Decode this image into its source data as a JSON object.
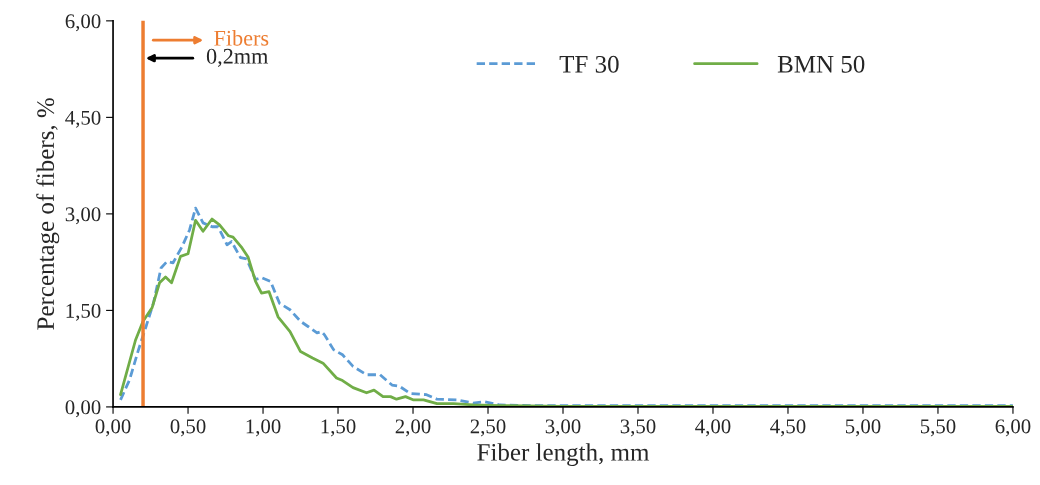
{
  "chart_data": {
    "type": "line",
    "xlabel": "Fiber length, mm",
    "ylabel": "Percentage of fibers, %",
    "xlim": [
      0,
      6
    ],
    "ylim": [
      0,
      6
    ],
    "xticks": [
      {
        "value": 0,
        "label": "0,00"
      },
      {
        "value": 0.5,
        "label": "0,50"
      },
      {
        "value": 1,
        "label": "1,00"
      },
      {
        "value": 1.5,
        "label": "1,50"
      },
      {
        "value": 2,
        "label": "2,00"
      },
      {
        "value": 2.5,
        "label": "2,50"
      },
      {
        "value": 3,
        "label": "3,00"
      },
      {
        "value": 3.5,
        "label": "3,50"
      },
      {
        "value": 4,
        "label": "4,00"
      },
      {
        "value": 4.5,
        "label": "4,50"
      },
      {
        "value": 5,
        "label": "5,00"
      },
      {
        "value": 5.5,
        "label": "5,50"
      },
      {
        "value": 6,
        "label": "6,00"
      }
    ],
    "yticks": [
      {
        "value": 0,
        "label": "0,00"
      },
      {
        "value": 1.5,
        "label": "1,50"
      },
      {
        "value": 3,
        "label": "3,00"
      },
      {
        "value": 4.5,
        "label": "4,50"
      },
      {
        "value": 6,
        "label": "6,00"
      }
    ],
    "grid": false,
    "legend": "top",
    "marker": "none",
    "series": [
      {
        "name": "TF 30",
        "color": "#5b9bd5",
        "line_style": "dashed",
        "x": [
          0.05,
          0.11,
          0.17,
          0.22,
          0.27,
          0.32,
          0.36,
          0.4,
          0.46,
          0.51,
          0.55,
          0.6,
          0.66,
          0.7,
          0.76,
          0.79,
          0.85,
          0.89,
          0.95,
          0.99,
          1.05,
          1.11,
          1.18,
          1.25,
          1.3,
          1.36,
          1.39,
          1.41,
          1.47,
          1.53,
          1.6,
          1.69,
          1.78,
          1.86,
          1.91,
          1.98,
          2.09,
          2.16,
          2.29,
          2.4,
          2.48,
          2.58,
          2.8,
          3.2,
          4.0,
          5.0,
          6.0
        ],
        "values": [
          0.11,
          0.42,
          0.89,
          1.25,
          1.62,
          2.16,
          2.26,
          2.24,
          2.49,
          2.75,
          3.09,
          2.86,
          2.8,
          2.8,
          2.52,
          2.57,
          2.32,
          2.3,
          1.98,
          2.01,
          1.95,
          1.61,
          1.51,
          1.33,
          1.25,
          1.15,
          1.17,
          1.12,
          0.89,
          0.81,
          0.63,
          0.5,
          0.5,
          0.34,
          0.32,
          0.21,
          0.19,
          0.12,
          0.11,
          0.06,
          0.08,
          0.03,
          0.02,
          0.02,
          0.02,
          0.02,
          0.02
        ]
      },
      {
        "name": "BMN 50",
        "color": "#70ad47",
        "line_style": "solid",
        "x": [
          0.05,
          0.15,
          0.2,
          0.26,
          0.31,
          0.35,
          0.39,
          0.45,
          0.5,
          0.55,
          0.6,
          0.66,
          0.71,
          0.77,
          0.8,
          0.86,
          0.9,
          0.95,
          0.99,
          1.04,
          1.1,
          1.18,
          1.25,
          1.33,
          1.4,
          1.49,
          1.53,
          1.6,
          1.69,
          1.74,
          1.8,
          1.85,
          1.89,
          1.95,
          2.0,
          2.07,
          2.16,
          2.27,
          2.4,
          2.58,
          3.0,
          4.0,
          5.0,
          6.0
        ],
        "values": [
          0.19,
          1.04,
          1.33,
          1.54,
          1.93,
          2.02,
          1.93,
          2.34,
          2.38,
          2.9,
          2.73,
          2.92,
          2.83,
          2.66,
          2.64,
          2.47,
          2.33,
          1.95,
          1.77,
          1.79,
          1.4,
          1.17,
          0.86,
          0.76,
          0.68,
          0.45,
          0.41,
          0.3,
          0.22,
          0.26,
          0.16,
          0.16,
          0.12,
          0.16,
          0.11,
          0.11,
          0.05,
          0.05,
          0.03,
          0.02,
          0.01,
          0.01,
          0.01,
          0.01
        ]
      }
    ],
    "ref_lines": [
      {
        "axis": "x",
        "value": 0.2,
        "label": "Fibers",
        "color": "#ed7d31",
        "line_style": "solid"
      }
    ],
    "annotations": [
      {
        "text": "0,2mm",
        "x": 0.2,
        "y": 5.42
      }
    ]
  }
}
